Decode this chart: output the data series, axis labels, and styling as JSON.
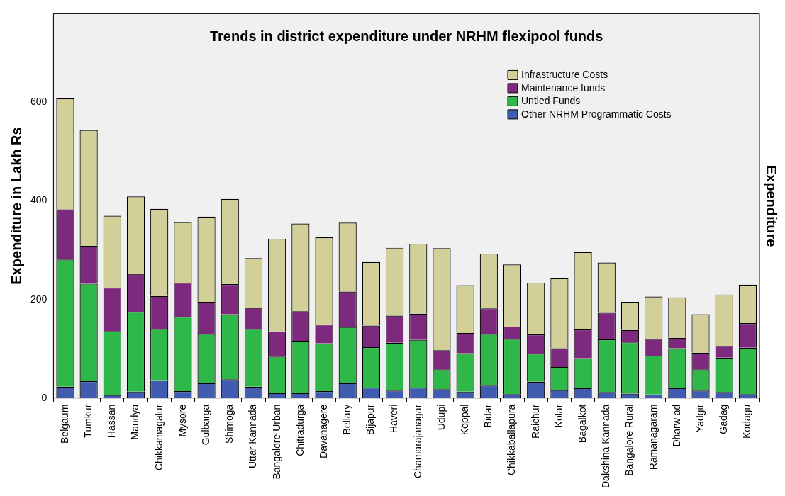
{
  "chart_data": {
    "type": "bar",
    "title": "Trends in district expenditure under NRHM flexipool funds",
    "ylabel": "Expenditure in Lakh Rs",
    "y2label": "Expenditure",
    "categories": [
      "Belgaum",
      "Tumkur",
      "Hassan",
      "Mandya",
      "Chikkamagalur",
      "Mysore",
      "Gulbarga",
      "Shimoga",
      "Uttar Kannada",
      "Bangalore Urban",
      "Chitradurga",
      "Davanagere",
      "Bellary",
      "Bijapur",
      "Haveri",
      "Chamarajanagar",
      "Udupi",
      "Koppal",
      "Bidar",
      "Chikkaballapura",
      "Raichur",
      "Kolar",
      "Bagalkot",
      "Dakshina Kannada",
      "Bangalore Rural",
      "Ramanagaram",
      "Dharw ad",
      "Yadgir",
      "Gadag",
      "Kodagu"
    ],
    "stacked": true,
    "ylim": [
      0,
      780
    ],
    "yticks": [
      0,
      200,
      400,
      600
    ],
    "grid": false,
    "legend": "top right",
    "series": [
      {
        "name": "Other NRHM Programmatic Costs",
        "color": "#3f5cb0",
        "values": [
          23,
          34,
          6,
          13,
          36,
          14,
          30,
          38,
          23,
          10,
          10,
          14,
          30,
          21,
          15,
          21,
          18,
          13,
          25,
          8,
          33,
          16,
          20,
          12,
          9,
          7,
          20,
          15,
          12,
          8
        ]
      },
      {
        "name": "Untied Funds",
        "color": "#2fb84a",
        "values": [
          258,
          198,
          130,
          162,
          104,
          151,
          100,
          132,
          117,
          74,
          106,
          97,
          114,
          82,
          97,
          97,
          40,
          78,
          105,
          112,
          57,
          47,
          61,
          107,
          104,
          79,
          81,
          43,
          70,
          94
        ]
      },
      {
        "name": "Maintenance funds",
        "color": "#7d2a7e",
        "values": [
          102,
          77,
          88,
          77,
          67,
          69,
          65,
          61,
          43,
          51,
          60,
          38,
          72,
          44,
          55,
          53,
          39,
          41,
          52,
          25,
          39,
          38,
          58,
          54,
          25,
          34,
          21,
          34,
          24,
          50
        ]
      },
      {
        "name": "Infrastructure Costs",
        "color": "#d3cf98",
        "values": [
          225,
          235,
          146,
          157,
          177,
          123,
          173,
          173,
          101,
          188,
          178,
          177,
          140,
          129,
          138,
          142,
          207,
          97,
          111,
          126,
          105,
          142,
          157,
          102,
          57,
          86,
          82,
          78,
          104,
          78
        ]
      }
    ]
  }
}
